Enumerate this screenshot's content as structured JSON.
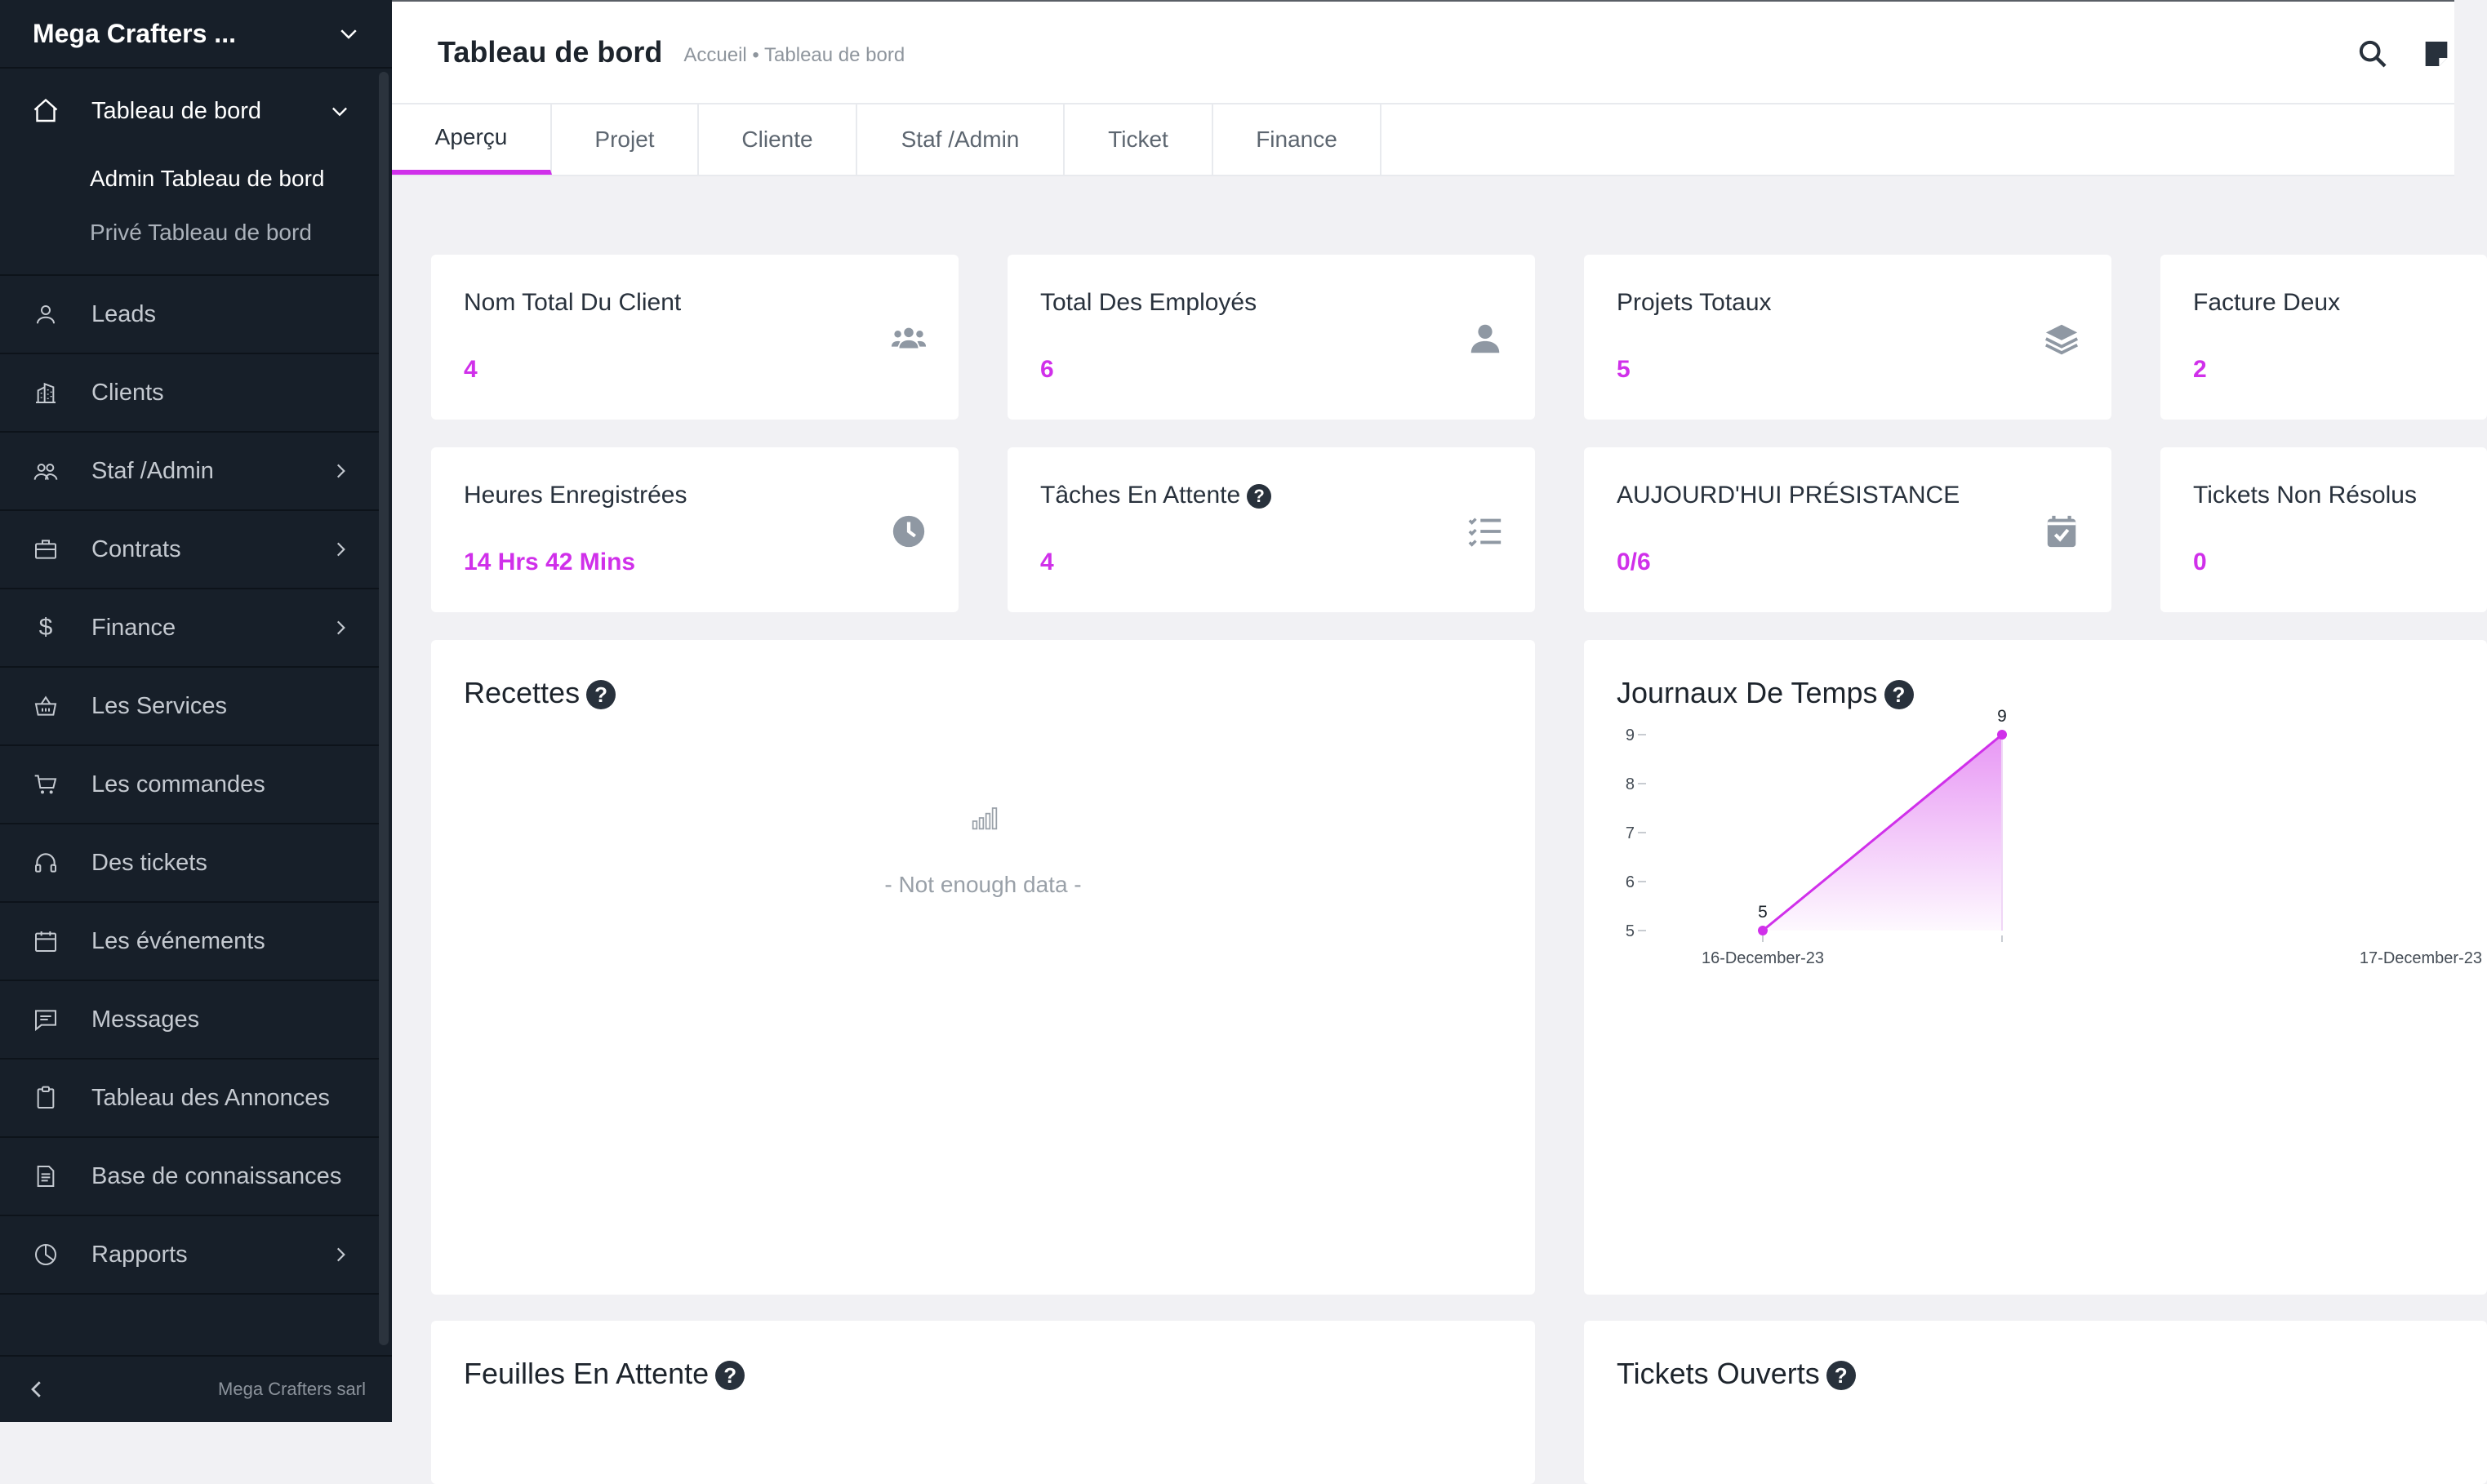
{
  "sidebar": {
    "workspace": "Mega Crafters ...",
    "items": [
      {
        "label": "Tableau de bord",
        "icon": "home-icon",
        "chevron": "down"
      },
      {
        "label": "Leads",
        "icon": "user-icon"
      },
      {
        "label": "Clients",
        "icon": "building-icon"
      },
      {
        "label": "Staf /Admin",
        "icon": "users-icon",
        "chevron": "right"
      },
      {
        "label": "Contrats",
        "icon": "briefcase-icon",
        "chevron": "right"
      },
      {
        "label": "Finance",
        "icon": "dollar-icon",
        "chevron": "right"
      },
      {
        "label": "Les Services",
        "icon": "basket-icon"
      },
      {
        "label": "Les commandes",
        "icon": "cart-icon"
      },
      {
        "label": "Des tickets",
        "icon": "headset-icon"
      },
      {
        "label": "Les événements",
        "icon": "calendar-icon"
      },
      {
        "label": "Messages",
        "icon": "message-icon"
      },
      {
        "label": "Tableau des Annonces",
        "icon": "clipboard-icon"
      },
      {
        "label": "Base de connaissances",
        "icon": "document-icon"
      },
      {
        "label": "Rapports",
        "icon": "pie-chart-icon",
        "chevron": "right"
      }
    ],
    "subitems": [
      "Admin Tableau de bord",
      "Privé Tableau de bord"
    ],
    "footer_company": "Mega Crafters sarl"
  },
  "header": {
    "title": "Tableau de bord",
    "breadcrumb": "Accueil • Tableau de bord"
  },
  "tabs": [
    {
      "label": "Aperçu"
    },
    {
      "label": "Projet"
    },
    {
      "label": "Cliente"
    },
    {
      "label": "Staf /Admin"
    },
    {
      "label": "Ticket"
    },
    {
      "label": "Finance"
    }
  ],
  "stats": [
    {
      "title": "Nom Total Du Client",
      "value": "4",
      "icon": "users-icon"
    },
    {
      "title": "Total Des Employés",
      "value": "6",
      "icon": "user-icon"
    },
    {
      "title": "Projets Totaux",
      "value": "5",
      "icon": "layers-icon"
    },
    {
      "title": "Facture Deux",
      "value": "2",
      "icon": ""
    },
    {
      "title": "Heures Enregistrées",
      "value": "14 Hrs 42 Mins",
      "icon": "clock-icon"
    },
    {
      "title": "Tâches En Attente",
      "value": "4",
      "icon": "task-list-icon"
    },
    {
      "title": "AUJOURD'HUI PRÉSISTANCE",
      "value": "0/6",
      "icon": "calendar-check-icon"
    },
    {
      "title": "Tickets Non Résolus",
      "value": "0",
      "icon": ""
    }
  ],
  "panels": {
    "recettes": {
      "title": "Recettes",
      "empty": "- Not enough data -"
    },
    "journaux": {
      "title": "Journaux De Temps"
    },
    "feuilles": {
      "title": "Feuilles En Attente"
    },
    "tickets": {
      "title": "Tickets Ouverts"
    }
  },
  "help_glyph": "?",
  "colors": {
    "accent": "#d030ea",
    "sidebar": "#171f29"
  },
  "chart_data": {
    "type": "area",
    "x": [
      "16-December-23",
      "17-December-23"
    ],
    "series": [
      {
        "values": [
          5,
          9
        ]
      }
    ],
    "data_labels": [
      "5",
      "9"
    ],
    "yticks": [
      "5",
      "6",
      "7",
      "8",
      "9"
    ],
    "ylim": [
      5,
      9
    ],
    "grid": false
  }
}
